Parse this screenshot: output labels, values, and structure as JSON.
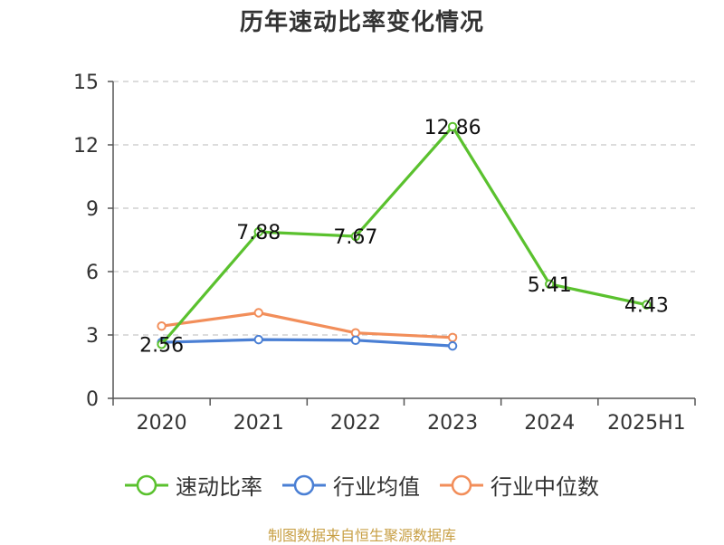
{
  "chart_data": {
    "type": "line",
    "title": "历年速动比率变化情况",
    "categories": [
      "2020",
      "2021",
      "2022",
      "2023",
      "2024",
      "2025H1"
    ],
    "ylim": [
      0,
      15
    ],
    "yticks": [
      0,
      3,
      6,
      9,
      12,
      15
    ],
    "grid": true,
    "legend_position": "bottom",
    "series": [
      {
        "name": "速动比率",
        "color": "#5ac12e",
        "values": [
          2.56,
          7.88,
          7.67,
          12.86,
          5.41,
          4.43
        ],
        "labels": [
          "2.56",
          "7.88",
          "7.67",
          "12.86",
          "5.41",
          "4.43"
        ],
        "show_labels": true
      },
      {
        "name": "行业均值",
        "color": "#4a7fd4",
        "values": [
          2.65,
          2.78,
          2.75,
          2.48,
          null,
          null
        ],
        "show_labels": false
      },
      {
        "name": "行业中位数",
        "color": "#f28e5a",
        "values": [
          3.42,
          4.05,
          3.1,
          2.88,
          null,
          null
        ],
        "show_labels": false
      }
    ]
  },
  "source_text": "制图数据来自恒生聚源数据库"
}
